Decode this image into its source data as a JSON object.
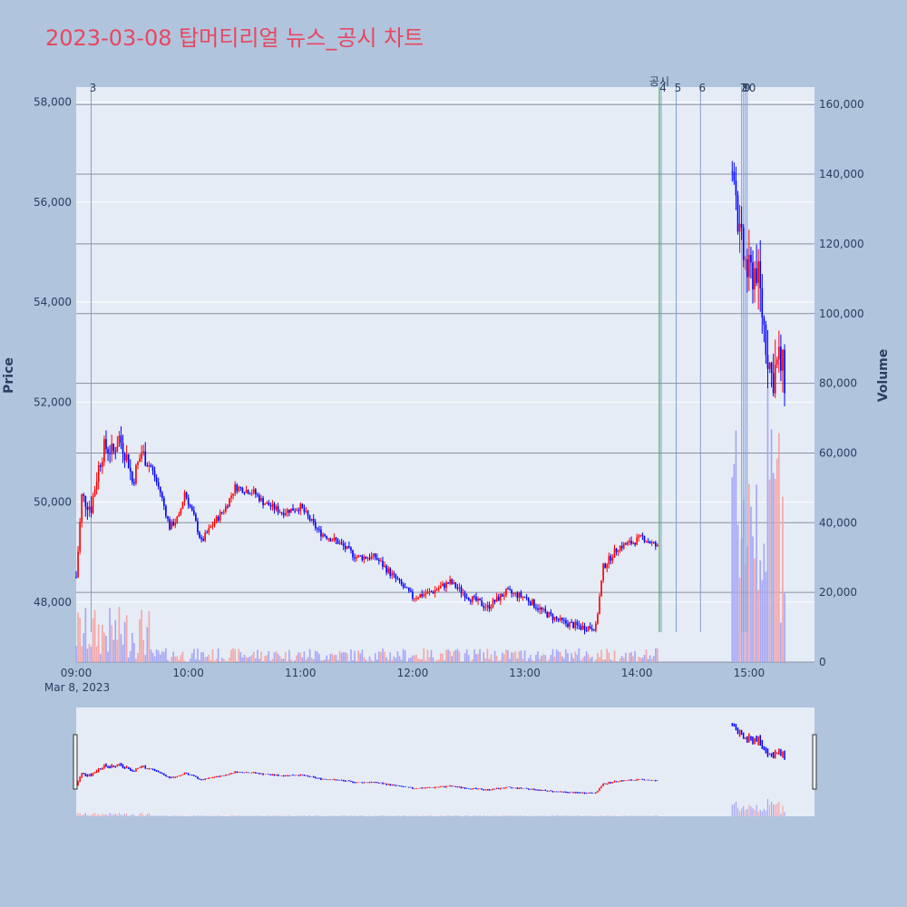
{
  "title": "2023-03-08 탑머티리얼 뉴스_공시 차트",
  "chart_data": {
    "type": "candlestick",
    "date_label": "Mar 8, 2023",
    "ylabel": "Price",
    "y2label": "Volume",
    "ylim": [
      46800,
      58300
    ],
    "y2lim": [
      0,
      165000
    ],
    "price_ticks": [
      "48,000",
      "50,000",
      "52,000",
      "54,000",
      "56,000",
      "58,000"
    ],
    "price_tick_values": [
      48000,
      50000,
      52000,
      54000,
      56000,
      58000
    ],
    "volume_ticks": [
      "0",
      "20,000",
      "40,000",
      "60,000",
      "80,000",
      "100,000",
      "120,000",
      "140,000",
      "160,000"
    ],
    "volume_tick_values": [
      0,
      20000,
      40000,
      60000,
      80000,
      100000,
      120000,
      140000,
      160000
    ],
    "time_ticks": [
      "09:00",
      "10:00",
      "11:00",
      "12:00",
      "13:00",
      "14:00",
      "15:00"
    ],
    "time_tick_minutes": [
      0,
      60,
      120,
      180,
      240,
      300,
      360
    ],
    "x_range_minutes": [
      0,
      395
    ],
    "price_path": [
      {
        "t": 0,
        "p": 48500
      },
      {
        "t": 3,
        "p": 50100
      },
      {
        "t": 8,
        "p": 49900
      },
      {
        "t": 12,
        "p": 50700
      },
      {
        "t": 15,
        "p": 51100
      },
      {
        "t": 20,
        "p": 51000
      },
      {
        "t": 23,
        "p": 51300
      },
      {
        "t": 28,
        "p": 50800
      },
      {
        "t": 30,
        "p": 50400
      },
      {
        "t": 35,
        "p": 51000
      },
      {
        "t": 40,
        "p": 50700
      },
      {
        "t": 45,
        "p": 50200
      },
      {
        "t": 50,
        "p": 49500
      },
      {
        "t": 55,
        "p": 49700
      },
      {
        "t": 58,
        "p": 50200
      },
      {
        "t": 63,
        "p": 49700
      },
      {
        "t": 67,
        "p": 49200
      },
      {
        "t": 72,
        "p": 49500
      },
      {
        "t": 80,
        "p": 49900
      },
      {
        "t": 85,
        "p": 50300
      },
      {
        "t": 95,
        "p": 50200
      },
      {
        "t": 100,
        "p": 50000
      },
      {
        "t": 110,
        "p": 49800
      },
      {
        "t": 120,
        "p": 49900
      },
      {
        "t": 130,
        "p": 49400
      },
      {
        "t": 140,
        "p": 49200
      },
      {
        "t": 150,
        "p": 48900
      },
      {
        "t": 160,
        "p": 48900
      },
      {
        "t": 170,
        "p": 48500
      },
      {
        "t": 180,
        "p": 48100
      },
      {
        "t": 190,
        "p": 48200
      },
      {
        "t": 200,
        "p": 48400
      },
      {
        "t": 210,
        "p": 48100
      },
      {
        "t": 220,
        "p": 47900
      },
      {
        "t": 230,
        "p": 48200
      },
      {
        "t": 240,
        "p": 48100
      },
      {
        "t": 250,
        "p": 47800
      },
      {
        "t": 260,
        "p": 47600
      },
      {
        "t": 270,
        "p": 47500
      },
      {
        "t": 278,
        "p": 47500
      },
      {
        "t": 282,
        "p": 48700
      },
      {
        "t": 290,
        "p": 49100
      },
      {
        "t": 298,
        "p": 49200
      },
      {
        "t": 303,
        "p": 49300
      },
      {
        "t": 311,
        "p": 49100
      },
      {
        "t": 352,
        "p": 56800
      },
      {
        "t": 355,
        "p": 55200
      },
      {
        "t": 360,
        "p": 54500
      },
      {
        "t": 364,
        "p": 54700
      },
      {
        "t": 368,
        "p": 53500
      },
      {
        "t": 372,
        "p": 52500
      },
      {
        "t": 376,
        "p": 52800
      },
      {
        "t": 379,
        "p": 52500
      }
    ],
    "gap_after_minute": 311,
    "gap_until_minute": 351,
    "last_minute": 379,
    "annotations": [
      {
        "label": "3",
        "minute": 8,
        "color": "#7f9fd8"
      },
      {
        "label": "공시",
        "minute": 312,
        "color": "#2ca02c"
      },
      {
        "label": "4",
        "minute": 313,
        "color": "#7f9fd8"
      },
      {
        "label": "5",
        "minute": 321,
        "color": "#7f9fd8"
      },
      {
        "label": "6",
        "minute": 334,
        "color": "#7f9fd8"
      },
      {
        "label": "7",
        "minute": 356,
        "color": "#7f9fd8"
      },
      {
        "label": "8",
        "minute": 357,
        "color": "#7f9fd8"
      },
      {
        "label": "9",
        "minute": 358,
        "color": "#7f9fd8"
      },
      {
        "label": "10",
        "minute": 359,
        "color": "#7f9fd8"
      }
    ],
    "colors": {
      "up": "#ff0000",
      "down": "#0000ff",
      "plot_bg": "#e5ecf6",
      "page_bg": "#b0c4de",
      "volume_up": "#f4a6a6",
      "volume_down": "#a6a6f4"
    }
  }
}
